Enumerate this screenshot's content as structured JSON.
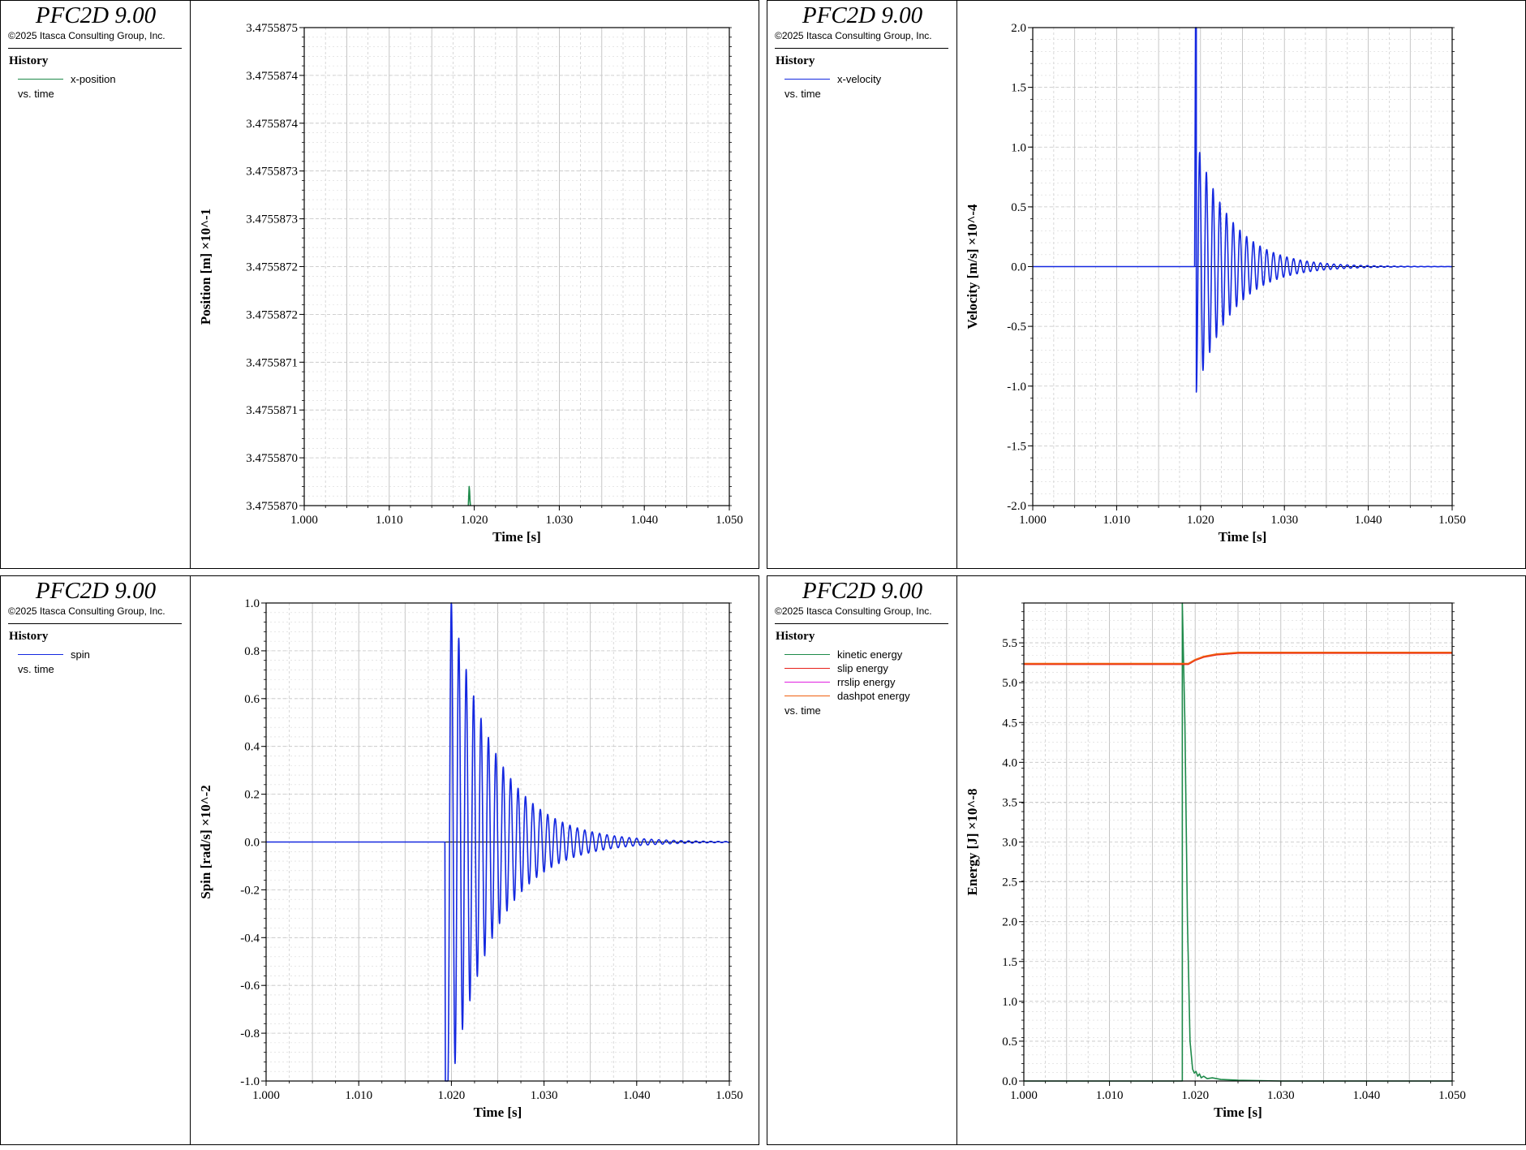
{
  "panels": [
    {
      "brand": "PFC2D 9.00",
      "copyright": "©2025 Itasca Consulting Group, Inc.",
      "history_title": "History",
      "legend": [
        {
          "label": "x-position",
          "color": "#1e8a4a"
        }
      ],
      "vs_time": "vs. time"
    },
    {
      "brand": "PFC2D 9.00",
      "copyright": "©2025 Itasca Consulting Group, Inc.",
      "history_title": "History",
      "legend": [
        {
          "label": "x-velocity",
          "color": "#1428e0"
        }
      ],
      "vs_time": "vs. time"
    },
    {
      "brand": "PFC2D 9.00",
      "copyright": "©2025 Itasca Consulting Group, Inc.",
      "history_title": "History",
      "legend": [
        {
          "label": "spin",
          "color": "#1428e0"
        }
      ],
      "vs_time": "vs. time"
    },
    {
      "brand": "PFC2D 9.00",
      "copyright": "©2025 Itasca Consulting Group, Inc.",
      "history_title": "History",
      "legend": [
        {
          "label": "kinetic energy",
          "color": "#1e8a4a"
        },
        {
          "label": "slip energy",
          "color": "#e8201a"
        },
        {
          "label": "rrslip energy",
          "color": "#e020e0"
        },
        {
          "label": "dashpot energy",
          "color": "#f06010"
        }
      ],
      "vs_time": "vs. time"
    }
  ],
  "chart_data": [
    {
      "type": "line",
      "xlabel": "Time [s]",
      "ylabel": "Position [m] ×10^-1",
      "xlim": [
        1.0,
        1.05
      ],
      "ylim": [
        3.475587,
        3.4755875
      ],
      "x_ticks": [
        "1.000",
        "1.010",
        "1.020",
        "1.030",
        "1.040",
        "1.050"
      ],
      "y_ticks": [
        "3.4755870",
        "3.4755870",
        "3.4755871",
        "3.4755871",
        "3.4755872",
        "3.4755872",
        "3.4755873",
        "3.4755873",
        "3.4755874",
        "3.4755874",
        "3.4755875"
      ],
      "zero_line": false,
      "series": [
        {
          "name": "x-position",
          "color": "#1e8a4a",
          "points": [
            [
              1.0193,
              3.475587
            ],
            [
              1.01935,
              3.47558701
            ],
            [
              1.0194,
              3.47558702
            ],
            [
              1.01945,
              3.475587015
            ],
            [
              1.0195,
              3.475587005
            ],
            [
              1.01955,
              3.475587
            ]
          ]
        }
      ]
    },
    {
      "type": "line",
      "xlabel": "Time [s]",
      "ylabel": "Velocity [m/s] ×10^-4",
      "xlim": [
        1.0,
        1.05
      ],
      "ylim": [
        -2.0,
        2.0
      ],
      "x_ticks": [
        "1.000",
        "1.010",
        "1.020",
        "1.030",
        "1.040",
        "1.050"
      ],
      "y_ticks": [
        "-2.0",
        "-1.5",
        "-1.0",
        "-0.5",
        "0.0",
        "0.5",
        "1.0",
        "1.5",
        "2.0"
      ],
      "zero_line": true,
      "series": [
        {
          "name": "x-velocity",
          "color": "#1428e0",
          "oscillation": {
            "t_start": 1.0193,
            "t_rise": 1.0194,
            "hold_value": 2.0,
            "hold_until": 1.0195,
            "amplitude": 1.05,
            "period": 0.0008,
            "decay": 0.0042,
            "t_end": 1.05,
            "phase_offset": 1.0195
          }
        }
      ]
    },
    {
      "type": "line",
      "xlabel": "Time [s]",
      "ylabel": "Spin [rad/s] ×10^-2",
      "xlim": [
        1.0,
        1.05
      ],
      "ylim": [
        -1.0,
        1.0
      ],
      "x_ticks": [
        "1.000",
        "1.010",
        "1.020",
        "1.030",
        "1.040",
        "1.050"
      ],
      "y_ticks": [
        "-1.0",
        "-0.8",
        "-0.6",
        "-0.4",
        "-0.2",
        "0.0",
        "0.2",
        "0.4",
        "0.6",
        "0.8",
        "1.0"
      ],
      "zero_line": true,
      "series": [
        {
          "name": "spin",
          "color": "#1428e0",
          "oscillation": {
            "t_start": 1.0193,
            "t_rise": 1.01935,
            "hold_value": -1.0,
            "hold_until": 1.0196,
            "amplitude": 1.05,
            "period": 0.0008,
            "decay": 0.0048,
            "t_end": 1.05,
            "phase_offset": 1.0198
          }
        }
      ]
    },
    {
      "type": "line",
      "xlabel": "Time [s]",
      "ylabel": "Energy [J] ×10^-8",
      "xlim": [
        1.0,
        1.05
      ],
      "ylim": [
        0.0,
        6.0
      ],
      "x_ticks": [
        "1.000",
        "1.010",
        "1.020",
        "1.030",
        "1.040",
        "1.050"
      ],
      "y_ticks": [
        "0.0",
        "0.5",
        "1.0",
        "1.5",
        "2.0",
        "2.5",
        "3.0",
        "3.5",
        "4.0",
        "4.5",
        "5.0",
        "5.5"
      ],
      "zero_line": false,
      "series": [
        {
          "name": "kinetic energy",
          "color": "#1e8a4a",
          "points": [
            [
              1.0,
              0.0
            ],
            [
              1.0185,
              0.0
            ],
            [
              1.0185,
              6.0
            ],
            [
              1.0188,
              4.5
            ],
            [
              1.0191,
              2.0
            ],
            [
              1.0194,
              0.5
            ],
            [
              1.0197,
              0.15
            ],
            [
              1.0199,
              0.1
            ],
            [
              1.0201,
              0.12
            ],
            [
              1.0203,
              0.06
            ],
            [
              1.0205,
              0.09
            ],
            [
              1.0207,
              0.04
            ],
            [
              1.021,
              0.06
            ],
            [
              1.0214,
              0.03
            ],
            [
              1.022,
              0.04
            ],
            [
              1.023,
              0.02
            ],
            [
              1.025,
              0.01
            ],
            [
              1.03,
              0.0
            ],
            [
              1.05,
              0.0
            ]
          ]
        },
        {
          "name": "slip energy",
          "color": "#e8201a",
          "points": [
            [
              1.0,
              5.23
            ],
            [
              1.0192,
              5.23
            ],
            [
              1.02,
              5.28
            ],
            [
              1.021,
              5.32
            ],
            [
              1.0225,
              5.35
            ],
            [
              1.025,
              5.37
            ],
            [
              1.05,
              5.37
            ]
          ]
        },
        {
          "name": "rrslip energy",
          "color": "#e020e0",
          "points": []
        },
        {
          "name": "dashpot energy",
          "color": "#f06010",
          "points": [
            [
              1.0,
              5.24
            ],
            [
              1.0192,
              5.24
            ],
            [
              1.02,
              5.29
            ],
            [
              1.021,
              5.33
            ],
            [
              1.0225,
              5.36
            ],
            [
              1.025,
              5.38
            ],
            [
              1.05,
              5.38
            ]
          ]
        }
      ]
    }
  ]
}
